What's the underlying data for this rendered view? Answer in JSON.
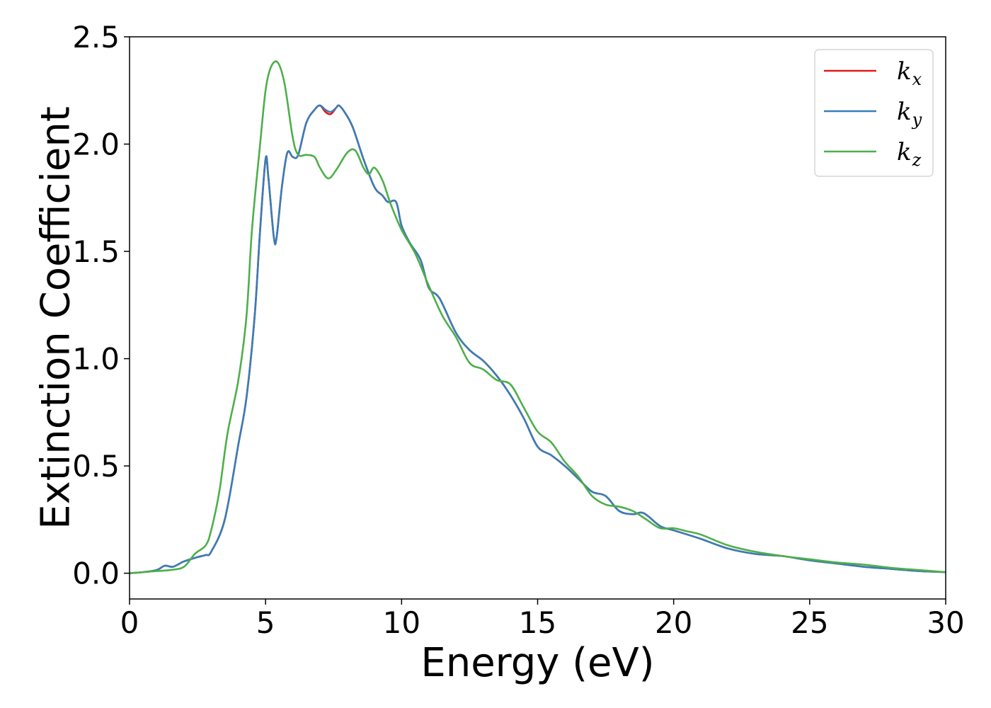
{
  "chart_data": {
    "type": "line",
    "xlabel": "Energy (eV)",
    "ylabel": "Extinction Coefficient",
    "xlim": [
      0,
      30
    ],
    "ylim": [
      -0.12,
      2.5
    ],
    "xticks": [
      0,
      5,
      10,
      15,
      20,
      25,
      30
    ],
    "xtick_labels": [
      "0",
      "5",
      "10",
      "15",
      "20",
      "25",
      "30"
    ],
    "yticks": [
      0.0,
      0.5,
      1.0,
      1.5,
      2.0,
      2.5
    ],
    "ytick_labels": [
      "0.0",
      "0.5",
      "1.0",
      "1.5",
      "2.0",
      "2.5"
    ],
    "grid": false,
    "legend_position": "top-right",
    "series": [
      {
        "name": "k_x",
        "label_main": "k",
        "label_sub": "x",
        "color": "#e41a1c",
        "x": [
          0,
          0.5,
          1.0,
          1.3,
          1.6,
          2.0,
          2.5,
          2.8,
          3.0,
          3.5,
          4.0,
          4.3,
          4.6,
          4.8,
          5.0,
          5.1,
          5.3,
          5.4,
          5.6,
          5.8,
          6.0,
          6.2,
          6.5,
          6.8,
          7.0,
          7.2,
          7.4,
          7.6,
          7.7,
          7.9,
          8.2,
          8.6,
          9.0,
          9.3,
          9.5,
          9.8,
          10.0,
          10.3,
          10.7,
          11.0,
          11.4,
          12.0,
          12.5,
          13.0,
          13.5,
          14.0,
          14.5,
          15.0,
          15.5,
          16.0,
          16.5,
          17.0,
          17.5,
          18.0,
          18.5,
          18.9,
          19.5,
          20.0,
          21.0,
          22.0,
          23.0,
          24.0,
          25.0,
          26.0,
          27.0,
          28.0,
          29.0,
          30.0
        ],
        "y": [
          0.0,
          0.005,
          0.015,
          0.035,
          0.03,
          0.055,
          0.075,
          0.085,
          0.1,
          0.25,
          0.6,
          0.82,
          1.2,
          1.6,
          1.93,
          1.85,
          1.57,
          1.56,
          1.8,
          1.96,
          1.94,
          1.95,
          2.1,
          2.16,
          2.18,
          2.15,
          2.14,
          2.17,
          2.18,
          2.15,
          2.08,
          1.93,
          1.8,
          1.76,
          1.73,
          1.73,
          1.62,
          1.54,
          1.46,
          1.33,
          1.28,
          1.12,
          1.04,
          0.99,
          0.92,
          0.83,
          0.72,
          0.59,
          0.55,
          0.5,
          0.44,
          0.38,
          0.36,
          0.29,
          0.275,
          0.28,
          0.22,
          0.2,
          0.16,
          0.115,
          0.09,
          0.08,
          0.06,
          0.045,
          0.03,
          0.02,
          0.01,
          0.005
        ]
      },
      {
        "name": "k_y",
        "label_main": "k",
        "label_sub": "y",
        "color": "#377eb8",
        "x": [
          0,
          0.5,
          1.0,
          1.3,
          1.6,
          2.0,
          2.5,
          2.8,
          3.0,
          3.5,
          4.0,
          4.3,
          4.6,
          4.8,
          5.0,
          5.1,
          5.3,
          5.4,
          5.6,
          5.8,
          6.0,
          6.2,
          6.5,
          6.8,
          7.0,
          7.2,
          7.4,
          7.6,
          7.7,
          7.9,
          8.2,
          8.6,
          9.0,
          9.3,
          9.5,
          9.8,
          10.0,
          10.3,
          10.7,
          11.0,
          11.4,
          12.0,
          12.5,
          13.0,
          13.5,
          14.0,
          14.5,
          15.0,
          15.5,
          16.0,
          16.5,
          17.0,
          17.5,
          18.0,
          18.5,
          18.9,
          19.5,
          20.0,
          21.0,
          22.0,
          23.0,
          24.0,
          25.0,
          26.0,
          27.0,
          28.0,
          29.0,
          30.0
        ],
        "y": [
          0.0,
          0.005,
          0.015,
          0.035,
          0.03,
          0.055,
          0.075,
          0.085,
          0.1,
          0.25,
          0.6,
          0.82,
          1.2,
          1.6,
          1.93,
          1.85,
          1.57,
          1.56,
          1.8,
          1.96,
          1.94,
          1.95,
          2.1,
          2.16,
          2.18,
          2.16,
          2.15,
          2.17,
          2.18,
          2.15,
          2.08,
          1.93,
          1.8,
          1.76,
          1.73,
          1.73,
          1.62,
          1.54,
          1.46,
          1.33,
          1.28,
          1.12,
          1.04,
          0.99,
          0.92,
          0.83,
          0.72,
          0.59,
          0.55,
          0.5,
          0.44,
          0.38,
          0.36,
          0.29,
          0.275,
          0.28,
          0.22,
          0.2,
          0.16,
          0.115,
          0.09,
          0.08,
          0.06,
          0.045,
          0.03,
          0.02,
          0.01,
          0.005
        ]
      },
      {
        "name": "k_z",
        "label_main": "k",
        "label_sub": "z",
        "color": "#4daf4a",
        "x": [
          0,
          0.5,
          1.0,
          1.5,
          2.0,
          2.4,
          2.8,
          3.0,
          3.3,
          3.6,
          4.0,
          4.3,
          4.5,
          4.8,
          5.0,
          5.2,
          5.45,
          5.7,
          6.0,
          6.2,
          6.5,
          6.8,
          7.0,
          7.3,
          7.6,
          8.0,
          8.3,
          8.6,
          8.8,
          9.0,
          9.3,
          9.6,
          10.0,
          10.5,
          11.0,
          11.5,
          12.0,
          12.5,
          13.0,
          13.5,
          14.0,
          14.5,
          15.0,
          15.5,
          16.0,
          16.5,
          17.0,
          17.5,
          18.0,
          18.5,
          19.0,
          19.5,
          20.0,
          20.5,
          21.0,
          22.0,
          23.0,
          24.0,
          25.0,
          26.0,
          27.0,
          28.0,
          29.0,
          30.0
        ],
        "y": [
          0.0,
          0.005,
          0.01,
          0.015,
          0.03,
          0.09,
          0.13,
          0.2,
          0.38,
          0.65,
          0.9,
          1.2,
          1.6,
          2.0,
          2.25,
          2.36,
          2.38,
          2.28,
          2.03,
          1.95,
          1.95,
          1.94,
          1.89,
          1.84,
          1.88,
          1.96,
          1.97,
          1.89,
          1.86,
          1.89,
          1.83,
          1.72,
          1.6,
          1.49,
          1.34,
          1.2,
          1.1,
          0.98,
          0.95,
          0.9,
          0.88,
          0.77,
          0.66,
          0.61,
          0.52,
          0.45,
          0.36,
          0.32,
          0.31,
          0.29,
          0.25,
          0.21,
          0.21,
          0.195,
          0.18,
          0.13,
          0.1,
          0.08,
          0.065,
          0.05,
          0.04,
          0.025,
          0.015,
          0.005
        ]
      }
    ]
  }
}
